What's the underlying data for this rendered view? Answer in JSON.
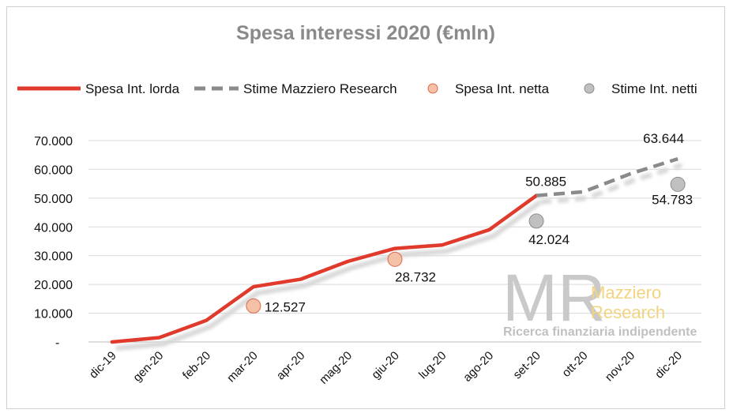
{
  "chart_data": {
    "type": "line",
    "title": "Spesa interessi 2020 (€mln)",
    "categories": [
      "dic-19",
      "gen-20",
      "feb-20",
      "mar-20",
      "apr-20",
      "mag-20",
      "giu-20",
      "lug-20",
      "ago-20",
      "set-20",
      "ott-20",
      "nov-20",
      "dic-20"
    ],
    "y_ticks": [
      "-",
      "10.000",
      "20.000",
      "30.000",
      "40.000",
      "50.000",
      "60.000",
      "70.000"
    ],
    "ylim": [
      0,
      70000
    ],
    "grid": true,
    "legend_position": "top",
    "series": [
      {
        "name": "Spesa Int. lorda",
        "style": "line",
        "color": "#e03a2c",
        "values": [
          0,
          1500,
          7500,
          19200,
          21800,
          28000,
          32500,
          33700,
          39000,
          50885,
          null,
          null,
          null
        ]
      },
      {
        "name": "Stime Mazziero Research",
        "style": "dashed",
        "color": "#8a8a8a",
        "values": [
          null,
          null,
          null,
          null,
          null,
          null,
          null,
          null,
          null,
          50885,
          52200,
          58500,
          63644
        ]
      },
      {
        "name": "Spesa Int. netta",
        "style": "marker",
        "color": "#f4c1a6",
        "values": [
          null,
          null,
          null,
          12527,
          null,
          null,
          28732,
          null,
          null,
          null,
          null,
          null,
          null
        ]
      },
      {
        "name": "Stime Int. netti",
        "style": "marker",
        "color": "#c0c0c0",
        "values": [
          null,
          null,
          null,
          null,
          null,
          null,
          null,
          null,
          null,
          42024,
          null,
          null,
          54783
        ]
      }
    ],
    "data_labels": [
      {
        "category": "mar-20",
        "value": 12527,
        "text": "12.527"
      },
      {
        "category": "giu-20",
        "value": 28732,
        "text": "28.732"
      },
      {
        "category": "set-20",
        "value": 50885,
        "text": "50.885"
      },
      {
        "category": "set-20",
        "value": 42024,
        "text": "42.024"
      },
      {
        "category": "dic-20",
        "value": 63644,
        "text": "63.644"
      },
      {
        "category": "dic-20",
        "value": 54783,
        "text": "54.783"
      }
    ]
  },
  "logo": {
    "monogram": "MR",
    "line1": "Mazziero",
    "line2": "Research",
    "tagline": "Ricerca finanziaria indipendente"
  }
}
